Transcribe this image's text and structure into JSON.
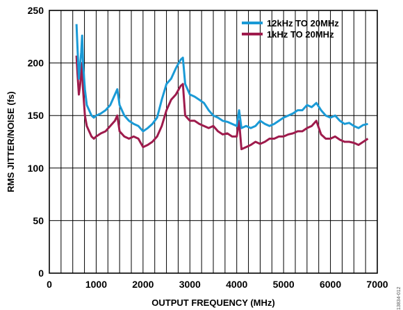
{
  "figure_id": "13834-012",
  "chart_data": {
    "type": "line",
    "title": "",
    "xlabel": "OUTPUT FREQUENCY (MHz)",
    "ylabel": "RMS JITTER/NOISE (fs)",
    "xlim": [
      0,
      7000
    ],
    "ylim": [
      0,
      250
    ],
    "x_ticks": [
      0,
      1000,
      2000,
      3000,
      4000,
      5000,
      6000,
      7000
    ],
    "y_ticks": [
      0,
      50,
      100,
      150,
      200,
      250
    ],
    "x_grid_step": 250,
    "y_grid_step": 50,
    "grid": true,
    "legend_position": "top-right",
    "series": [
      {
        "name": "12kHz TO 20MHz",
        "color": "#1a9ad6",
        "x": [
          580,
          600,
          630,
          660,
          680,
          700,
          720,
          760,
          800,
          850,
          900,
          950,
          1000,
          1100,
          1200,
          1300,
          1400,
          1450,
          1500,
          1600,
          1700,
          1800,
          1900,
          2000,
          2100,
          2200,
          2300,
          2400,
          2500,
          2600,
          2700,
          2800,
          2850,
          2900,
          3000,
          3100,
          3200,
          3300,
          3400,
          3500,
          3600,
          3700,
          3800,
          3900,
          4000,
          4050,
          4100,
          4200,
          4300,
          4400,
          4500,
          4600,
          4700,
          4800,
          4900,
          5000,
          5100,
          5200,
          5300,
          5400,
          5500,
          5600,
          5700,
          5800,
          5900,
          6000,
          6100,
          6200,
          6300,
          6400,
          6500,
          6600,
          6700,
          6800
        ],
        "y": [
          237,
          215,
          185,
          200,
          210,
          226,
          200,
          175,
          160,
          155,
          150,
          148,
          150,
          152,
          155,
          160,
          170,
          175,
          160,
          150,
          145,
          142,
          140,
          135,
          138,
          142,
          148,
          165,
          180,
          185,
          195,
          203,
          205,
          180,
          170,
          168,
          165,
          162,
          155,
          150,
          148,
          145,
          144,
          142,
          140,
          155,
          138,
          140,
          138,
          140,
          145,
          142,
          140,
          142,
          145,
          148,
          150,
          152,
          155,
          155,
          160,
          158,
          162,
          155,
          150,
          148,
          150,
          145,
          142,
          143,
          140,
          138,
          141,
          142
        ]
      },
      {
        "name": "1kHz TO 20MHz",
        "color": "#9e1b4c",
        "x": [
          580,
          600,
          630,
          660,
          680,
          700,
          720,
          760,
          800,
          850,
          900,
          950,
          1000,
          1100,
          1200,
          1300,
          1400,
          1450,
          1500,
          1600,
          1700,
          1800,
          1900,
          2000,
          2100,
          2200,
          2300,
          2400,
          2500,
          2600,
          2700,
          2800,
          2850,
          2900,
          3000,
          3100,
          3200,
          3300,
          3400,
          3500,
          3600,
          3700,
          3800,
          3900,
          4000,
          4050,
          4100,
          4200,
          4300,
          4400,
          4500,
          4600,
          4700,
          4800,
          4900,
          5000,
          5100,
          5200,
          5300,
          5400,
          5500,
          5600,
          5700,
          5800,
          5900,
          6000,
          6100,
          6200,
          6300,
          6400,
          6500,
          6600,
          6700,
          6800
        ],
        "y": [
          207,
          190,
          170,
          180,
          190,
          200,
          175,
          150,
          140,
          135,
          130,
          128,
          130,
          133,
          135,
          140,
          145,
          150,
          135,
          130,
          128,
          130,
          128,
          120,
          122,
          125,
          130,
          140,
          155,
          165,
          170,
          178,
          180,
          150,
          145,
          145,
          142,
          140,
          138,
          140,
          135,
          132,
          133,
          130,
          130,
          145,
          118,
          120,
          122,
          125,
          123,
          125,
          128,
          128,
          130,
          130,
          132,
          133,
          135,
          135,
          138,
          140,
          145,
          132,
          128,
          128,
          130,
          127,
          125,
          125,
          124,
          122,
          125,
          128
        ]
      }
    ]
  }
}
